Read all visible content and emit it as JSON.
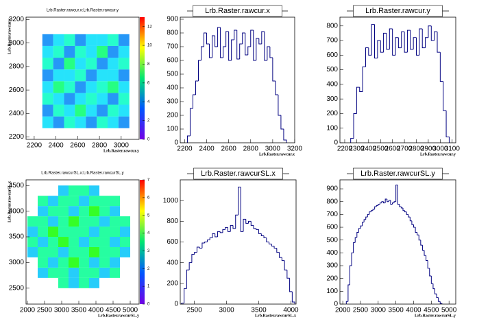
{
  "chart_data": [
    {
      "type": "heatmap",
      "title": "Lrb.Raster.rawcur.x:Lrb.Raster.rawcur.y",
      "xlabel": "Lrb.Raster.rawcur.y",
      "ylabel": "Lrb.Raster.rawcur.x",
      "xlim": [
        2125,
        3165
      ],
      "ylim": [
        2180,
        3220
      ],
      "xticks": [
        2200,
        2400,
        2600,
        2800,
        3000
      ],
      "yticks": [
        2200,
        2400,
        2600,
        2800,
        3000,
        3200
      ],
      "xbins": [
        2275,
        2375,
        2475,
        2575,
        2675,
        2775,
        2875,
        2975,
        3075
      ],
      "ybins": [
        2275,
        2375,
        2475,
        2575,
        2675,
        2775,
        2875,
        2975,
        3075
      ],
      "z": [
        [
          4,
          3,
          5,
          4,
          3,
          5,
          4,
          3
        ],
        [
          3,
          5,
          4,
          6,
          4,
          3,
          5,
          4
        ],
        [
          5,
          4,
          3,
          4,
          5,
          4,
          3,
          5
        ],
        [
          4,
          6,
          5,
          3,
          4,
          5,
          6,
          4
        ],
        [
          3,
          4,
          4,
          5,
          3,
          4,
          4,
          3
        ],
        [
          5,
          3,
          6,
          4,
          5,
          3,
          4,
          5
        ],
        [
          4,
          5,
          3,
          5,
          4,
          6,
          3,
          4
        ],
        [
          3,
          4,
          5,
          3,
          4,
          4,
          5,
          3
        ]
      ],
      "zlim": [
        0,
        13
      ],
      "zticks": [
        0,
        2,
        4,
        6,
        8,
        10,
        12
      ]
    },
    {
      "type": "histogram",
      "title": "Lrb.Raster.rawcur.x",
      "xlabel": "Lrb.Raster.rawcur.x",
      "color": "#000080",
      "xlim": [
        2160,
        3200
      ],
      "ylim": [
        0,
        915
      ],
      "xticks": [
        2200,
        2400,
        2600,
        2800,
        3000,
        3200
      ],
      "yticks": [
        0,
        100,
        200,
        300,
        400,
        500,
        600,
        700,
        800,
        900
      ],
      "bins": [
        2225,
        2250,
        2275,
        2300,
        2325,
        2350,
        2375,
        2400,
        2425,
        2450,
        2475,
        2500,
        2525,
        2550,
        2575,
        2600,
        2625,
        2650,
        2675,
        2700,
        2725,
        2750,
        2775,
        2800,
        2825,
        2850,
        2875,
        2900,
        2925,
        2950,
        2975,
        3000,
        3025,
        3050,
        3075,
        3100,
        3125
      ],
      "values": [
        50,
        250,
        350,
        450,
        600,
        700,
        800,
        720,
        620,
        780,
        700,
        840,
        620,
        700,
        810,
        600,
        750,
        820,
        610,
        720,
        800,
        640,
        700,
        820,
        600,
        760,
        720,
        810,
        600,
        700,
        620,
        450,
        350,
        200,
        100,
        20
      ]
    },
    {
      "type": "histogram",
      "title": "Lrb.Raster.rawcur.y",
      "xlabel": "Lrb.Raster.rawcur.y",
      "color": "#000080",
      "xlim": [
        2160,
        3130
      ],
      "ylim": [
        0,
        860
      ],
      "xticks": [
        2200,
        2300,
        2400,
        2500,
        2600,
        2700,
        2800,
        2900,
        3000,
        3100
      ],
      "yticks": [
        0,
        100,
        200,
        300,
        400,
        500,
        600,
        700,
        800
      ],
      "bins": [
        2250,
        2275,
        2300,
        2325,
        2350,
        2375,
        2400,
        2425,
        2450,
        2475,
        2500,
        2525,
        2550,
        2575,
        2600,
        2625,
        2650,
        2675,
        2700,
        2725,
        2750,
        2775,
        2800,
        2825,
        2850,
        2875,
        2900,
        2925,
        2950,
        2975,
        3000,
        3025,
        3050,
        3075
      ],
      "values": [
        30,
        200,
        380,
        350,
        520,
        650,
        600,
        810,
        580,
        700,
        620,
        750,
        640,
        780,
        600,
        720,
        650,
        760,
        620,
        770,
        640,
        720,
        600,
        780,
        650,
        720,
        800,
        700,
        760,
        620,
        420,
        220,
        40
      ]
    },
    {
      "type": "heatmap",
      "title": "Lrb.Raster.rawcurSL.x:Lrb.Raster.rawcurSL.y",
      "xlabel": "Lrb.Raster.rawcurSL.y",
      "ylabel": "Lrb.Raster.rawcurSL.x",
      "xlim": [
        1960,
        5260
      ],
      "ylim": [
        2190,
        4610
      ],
      "xticks": [
        2000,
        2500,
        3000,
        3500,
        4000,
        4500,
        5000
      ],
      "yticks": [
        2500,
        3000,
        3500,
        4000,
        4500
      ],
      "xbins": [
        2000,
        2300,
        2600,
        2900,
        3200,
        3500,
        3800,
        4100,
        4400,
        4700,
        5000
      ],
      "ybins": [
        2500,
        2700,
        2900,
        3100,
        3300,
        3500,
        3700,
        3900,
        4100,
        4300,
        4500
      ],
      "z": [
        [
          0,
          0,
          0,
          3,
          2,
          3,
          2,
          0,
          0,
          0
        ],
        [
          0,
          2,
          3,
          3,
          2,
          3,
          3,
          2,
          3,
          0
        ],
        [
          0,
          3,
          2,
          3,
          4,
          3,
          2,
          3,
          2,
          0
        ],
        [
          2,
          3,
          3,
          2,
          3,
          3,
          4,
          3,
          3,
          2
        ],
        [
          3,
          2,
          3,
          4,
          3,
          2,
          3,
          3,
          2,
          3
        ],
        [
          2,
          3,
          4,
          3,
          3,
          3,
          2,
          3,
          3,
          2
        ],
        [
          3,
          3,
          2,
          3,
          4,
          3,
          3,
          2,
          3,
          3
        ],
        [
          0,
          2,
          3,
          3,
          2,
          3,
          4,
          3,
          2,
          0
        ],
        [
          0,
          3,
          2,
          3,
          3,
          2,
          3,
          3,
          3,
          0
        ],
        [
          0,
          0,
          0,
          2,
          3,
          3,
          2,
          0,
          0,
          0
        ]
      ],
      "zlim": [
        0,
        7
      ],
      "zticks": [
        0,
        1,
        2,
        3,
        4,
        5,
        6,
        7
      ]
    },
    {
      "type": "histogram",
      "title": "Lrb.Raster.rawcurSL.x",
      "xlabel": "Lrb.Raster.rawcurSL.x",
      "color": "#000080",
      "xlim": [
        2280,
        4080
      ],
      "ylim": [
        0,
        1200
      ],
      "xticks": [
        2500,
        3000,
        3500,
        4000
      ],
      "yticks": [
        0,
        200,
        400,
        600,
        800,
        1000
      ],
      "bins": [
        2300,
        2340,
        2380,
        2420,
        2460,
        2500,
        2540,
        2580,
        2620,
        2660,
        2700,
        2740,
        2780,
        2820,
        2860,
        2900,
        2940,
        2980,
        3020,
        3060,
        3100,
        3140,
        3180,
        3220,
        3260,
        3300,
        3340,
        3380,
        3420,
        3460,
        3500,
        3540,
        3580,
        3620,
        3660,
        3700,
        3740,
        3780,
        3820,
        3860,
        3900,
        3940,
        3980,
        4020,
        4060
      ],
      "values": [
        10,
        150,
        330,
        400,
        480,
        500,
        550,
        540,
        590,
        600,
        620,
        640,
        680,
        650,
        700,
        690,
        720,
        740,
        700,
        760,
        730,
        860,
        1130,
        700,
        820,
        780,
        800,
        760,
        730,
        720,
        680,
        660,
        640,
        600,
        580,
        560,
        540,
        500,
        450,
        420,
        330,
        250,
        120,
        20
      ]
    },
    {
      "type": "histogram",
      "title": "Lrb.Raster.rawcurSL.y",
      "xlabel": "Lrb.Raster.rawcurSL.y",
      "color": "#000080",
      "xlim": [
        1920,
        5190
      ],
      "ylim": [
        0,
        970
      ],
      "xticks": [
        2000,
        2500,
        3000,
        3500,
        4000,
        4500,
        5000
      ],
      "yticks": [
        0,
        100,
        200,
        300,
        400,
        500,
        600,
        700,
        800,
        900
      ],
      "bins": [
        2100,
        2150,
        2200,
        2250,
        2300,
        2350,
        2400,
        2450,
        2500,
        2550,
        2600,
        2650,
        2700,
        2750,
        2800,
        2850,
        2900,
        2950,
        3000,
        3050,
        3100,
        3150,
        3200,
        3250,
        3300,
        3350,
        3400,
        3450,
        3500,
        3550,
        3600,
        3650,
        3700,
        3750,
        3800,
        3850,
        3900,
        3950,
        4000,
        4050,
        4100,
        4150,
        4200,
        4250,
        4300,
        4350,
        4400,
        4450,
        4500,
        4550,
        4600,
        4650,
        4700,
        4750,
        4800
      ],
      "values": [
        20,
        150,
        300,
        400,
        480,
        520,
        560,
        590,
        610,
        640,
        660,
        680,
        700,
        720,
        730,
        740,
        760,
        770,
        780,
        790,
        800,
        790,
        820,
        800,
        810,
        780,
        790,
        800,
        930,
        780,
        760,
        750,
        730,
        720,
        700,
        680,
        650,
        620,
        600,
        560,
        540,
        500,
        460,
        420,
        380,
        340,
        280,
        220,
        160,
        120,
        80,
        50,
        20,
        5
      ]
    }
  ]
}
